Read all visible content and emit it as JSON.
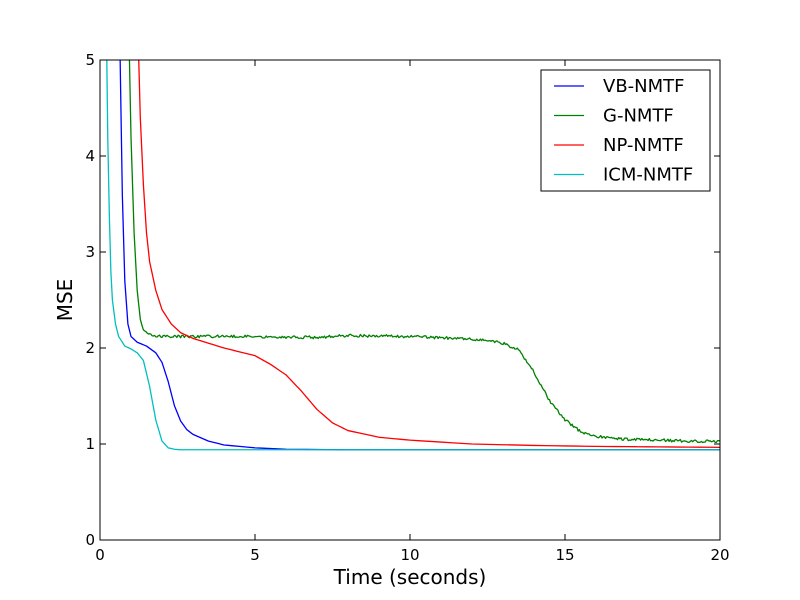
{
  "chart_data": {
    "type": "line",
    "title": "",
    "xlabel": "Time (seconds)",
    "ylabel": "MSE",
    "xlim": [
      0,
      20
    ],
    "ylim": [
      0,
      5
    ],
    "xticks": [
      0,
      5,
      10,
      15,
      20
    ],
    "yticks": [
      0,
      1,
      2,
      3,
      4,
      5
    ],
    "grid": false,
    "legend_position": "top-right",
    "series": [
      {
        "name": "VB-NMTF",
        "color": "#0000ff",
        "noise": 0,
        "x": [
          0.65,
          0.72,
          0.8,
          0.9,
          1.0,
          1.2,
          1.5,
          1.8,
          2.0,
          2.2,
          2.4,
          2.6,
          2.8,
          3.0,
          3.5,
          4.0,
          5.0,
          6.0,
          8.0,
          10.0,
          15.0,
          20.0
        ],
        "y": [
          5.0,
          3.6,
          2.7,
          2.25,
          2.12,
          2.06,
          2.02,
          1.95,
          1.85,
          1.65,
          1.4,
          1.24,
          1.15,
          1.1,
          1.03,
          0.99,
          0.96,
          0.945,
          0.94,
          0.94,
          0.94,
          0.94
        ]
      },
      {
        "name": "G-NMTF",
        "color": "#008000",
        "noise": 0.018,
        "x": [
          0.95,
          1.0,
          1.1,
          1.2,
          1.3,
          1.4,
          1.6,
          2.0,
          3.0,
          5.0,
          7.0,
          8.0,
          10.0,
          11.5,
          12.0,
          12.5,
          13.0,
          13.5,
          14.0,
          14.5,
          15.0,
          15.5,
          16.0,
          16.5,
          17.0,
          18.0,
          19.0,
          20.0
        ],
        "y": [
          5.0,
          4.2,
          3.2,
          2.6,
          2.3,
          2.18,
          2.14,
          2.12,
          2.12,
          2.12,
          2.11,
          2.13,
          2.12,
          2.1,
          2.09,
          2.08,
          2.05,
          1.98,
          1.75,
          1.45,
          1.25,
          1.13,
          1.08,
          1.06,
          1.05,
          1.04,
          1.03,
          1.03
        ]
      },
      {
        "name": "NP-NMTF",
        "color": "#ff0000",
        "noise": 0,
        "x": [
          1.25,
          1.3,
          1.4,
          1.5,
          1.6,
          1.8,
          2.0,
          2.3,
          2.6,
          3.0,
          3.5,
          4.0,
          4.5,
          5.0,
          5.5,
          6.0,
          6.5,
          7.0,
          7.5,
          8.0,
          9.0,
          10.0,
          12.0,
          14.0,
          16.0,
          18.0,
          20.0
        ],
        "y": [
          5.0,
          4.4,
          3.7,
          3.2,
          2.9,
          2.6,
          2.4,
          2.25,
          2.16,
          2.1,
          2.05,
          2.0,
          1.96,
          1.92,
          1.83,
          1.72,
          1.55,
          1.36,
          1.22,
          1.14,
          1.07,
          1.04,
          1.0,
          0.985,
          0.975,
          0.97,
          0.965
        ]
      },
      {
        "name": "ICM-NMTF",
        "color": "#00bfbf",
        "noise": 0,
        "x": [
          0.22,
          0.25,
          0.3,
          0.35,
          0.4,
          0.5,
          0.6,
          0.8,
          1.0,
          1.2,
          1.4,
          1.6,
          1.8,
          2.0,
          2.2,
          2.4,
          2.6,
          3.0,
          5.0,
          10.0,
          20.0
        ],
        "y": [
          5.0,
          4.2,
          3.4,
          2.8,
          2.5,
          2.25,
          2.12,
          2.02,
          1.99,
          1.95,
          1.87,
          1.6,
          1.25,
          1.03,
          0.96,
          0.945,
          0.94,
          0.94,
          0.94,
          0.94,
          0.94
        ]
      }
    ]
  }
}
